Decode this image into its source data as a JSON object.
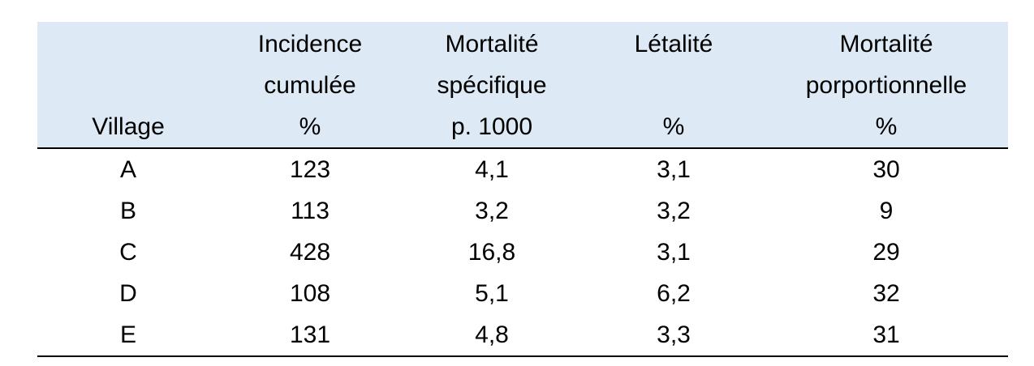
{
  "table": {
    "headers": [
      {
        "lines": [
          "",
          "",
          "Village"
        ]
      },
      {
        "lines": [
          "Incidence",
          "cumulée",
          "%"
        ]
      },
      {
        "lines": [
          "Mortalité",
          "spécifique",
          "p. 1000"
        ]
      },
      {
        "lines": [
          "Létalité",
          "",
          "%"
        ]
      },
      {
        "lines": [
          "Mortalité",
          "porportionnelle",
          "%"
        ]
      }
    ],
    "rows": [
      [
        "A",
        "123",
        "4,1",
        "3,1",
        "30"
      ],
      [
        "B",
        "113",
        "3,2",
        "3,2",
        "9"
      ],
      [
        "C",
        "428",
        "16,8",
        "3,1",
        "29"
      ],
      [
        "D",
        "108",
        "5,1",
        "6,2",
        "32"
      ],
      [
        "E",
        "131",
        "4,8",
        "3,3",
        "31"
      ]
    ]
  },
  "colors": {
    "header_background": "#dde9f4",
    "rule": "#000000"
  }
}
